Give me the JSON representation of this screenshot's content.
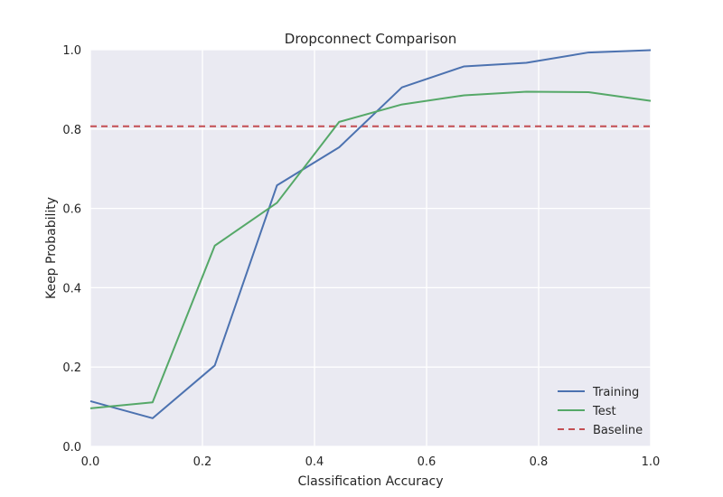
{
  "chart_data": {
    "type": "line",
    "title": "Dropconnect Comparison",
    "xlabel": "Classification Accuracy",
    "ylabel": "Keep Probability",
    "xlim": [
      0.0,
      1.0
    ],
    "ylim": [
      0.0,
      1.0
    ],
    "xticks": [
      "0.0",
      "0.2",
      "0.4",
      "0.6",
      "0.8",
      "1.0"
    ],
    "yticks": [
      "0.0",
      "0.2",
      "0.4",
      "0.6",
      "0.8",
      "1.0"
    ],
    "grid": true,
    "legend_position": "lower-right",
    "x": [
      0.0,
      0.111,
      0.222,
      0.333,
      0.444,
      0.556,
      0.667,
      0.778,
      0.889,
      1.0
    ],
    "series": [
      {
        "name": "Training",
        "color": "#4c72b0",
        "style": "solid",
        "values": [
          0.114,
          0.071,
          0.204,
          0.658,
          0.754,
          0.905,
          0.958,
          0.967,
          0.993,
          0.999
        ]
      },
      {
        "name": "Test",
        "color": "#55a868",
        "style": "solid",
        "values": [
          0.096,
          0.111,
          0.506,
          0.614,
          0.818,
          0.862,
          0.885,
          0.894,
          0.893,
          0.871
        ]
      }
    ],
    "baseline": {
      "name": "Baseline",
      "color": "#c44e52",
      "style": "dashed",
      "value": 0.807
    }
  }
}
